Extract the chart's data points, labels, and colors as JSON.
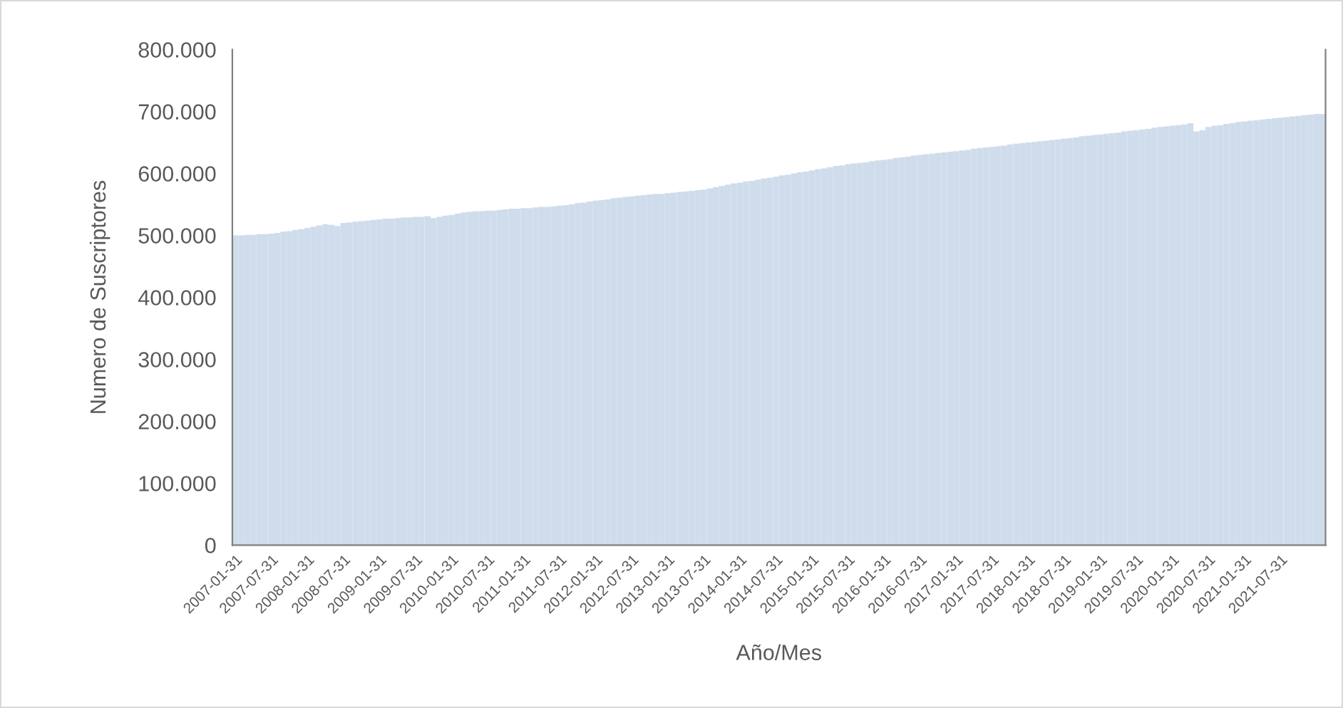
{
  "chart_data": {
    "type": "bar",
    "xlabel": "Año/Mes",
    "ylabel": "Numero de Suscriptores",
    "color": "#cfdcec",
    "categories": [
      "2007-01-31",
      null,
      null,
      null,
      null,
      null,
      "2007-07-31",
      null,
      null,
      null,
      null,
      null,
      "2008-01-31",
      null,
      null,
      null,
      null,
      null,
      "2008-07-31",
      null,
      null,
      null,
      null,
      null,
      "2009-01-31",
      null,
      null,
      null,
      null,
      null,
      "2009-07-31",
      null,
      null,
      null,
      null,
      null,
      "2010-01-31",
      null,
      null,
      null,
      null,
      null,
      "2010-07-31",
      null,
      null,
      null,
      null,
      null,
      "2011-01-31",
      null,
      null,
      null,
      null,
      null,
      "2011-07-31",
      null,
      null,
      null,
      null,
      null,
      "2012-01-31",
      null,
      null,
      null,
      null,
      null,
      "2012-07-31",
      null,
      null,
      null,
      null,
      null,
      "2013-01-31",
      null,
      null,
      null,
      null,
      null,
      "2013-07-31",
      null,
      null,
      null,
      null,
      null,
      "2014-01-31",
      null,
      null,
      null,
      null,
      null,
      "2014-07-31",
      null,
      null,
      null,
      null,
      null,
      "2015-01-31",
      null,
      null,
      null,
      null,
      null,
      "2015-07-31",
      null,
      null,
      null,
      null,
      null,
      "2016-01-31",
      null,
      null,
      null,
      null,
      null,
      "2016-07-31",
      null,
      null,
      null,
      null,
      null,
      "2017-01-31",
      null,
      null,
      null,
      null,
      null,
      "2017-07-31",
      null,
      null,
      null,
      null,
      null,
      "2018-01-31",
      null,
      null,
      null,
      null,
      null,
      "2018-07-31",
      null,
      null,
      null,
      null,
      null,
      "2019-01-31",
      null,
      null,
      null,
      null,
      null,
      "2019-07-31",
      null,
      null,
      null,
      null,
      null,
      "2020-01-31",
      null,
      null,
      null,
      null,
      null,
      "2020-07-31",
      null,
      null,
      null,
      null,
      null,
      "2021-01-31",
      null,
      null,
      null,
      null,
      null,
      "2021-07-31",
      null,
      null,
      null,
      null,
      null,
      null,
      null
    ],
    "values": [
      500000,
      500000,
      501000,
      501000,
      502000,
      502000,
      503000,
      504000,
      506000,
      507000,
      509000,
      510000,
      512000,
      514000,
      516000,
      518000,
      517000,
      515000,
      520000,
      521000,
      522000,
      523000,
      524000,
      525000,
      526000,
      527000,
      527000,
      528000,
      529000,
      529000,
      530000,
      530000,
      531000,
      528000,
      530000,
      532000,
      533000,
      535000,
      537000,
      538000,
      539000,
      539000,
      540000,
      540000,
      541000,
      542000,
      543000,
      543000,
      544000,
      544000,
      545000,
      546000,
      546000,
      547000,
      548000,
      549000,
      550000,
      552000,
      553000,
      555000,
      556000,
      557000,
      558000,
      560000,
      561000,
      562000,
      563000,
      564000,
      565000,
      566000,
      567000,
      567000,
      568000,
      569000,
      570000,
      571000,
      572000,
      573000,
      574000,
      576000,
      578000,
      580000,
      582000,
      584000,
      585000,
      587000,
      588000,
      590000,
      592000,
      593000,
      595000,
      597000,
      598000,
      600000,
      602000,
      603000,
      605000,
      607000,
      608000,
      610000,
      612000,
      613000,
      615000,
      616000,
      617000,
      618000,
      620000,
      621000,
      622000,
      623000,
      625000,
      626000,
      627000,
      629000,
      630000,
      631000,
      632000,
      633000,
      634000,
      635000,
      636000,
      637000,
      638000,
      640000,
      641000,
      642000,
      643000,
      644000,
      645000,
      647000,
      648000,
      649000,
      650000,
      651000,
      652000,
      653000,
      654000,
      655000,
      656000,
      657000,
      658000,
      660000,
      661000,
      662000,
      663000,
      664000,
      665000,
      666000,
      668000,
      669000,
      670000,
      671000,
      672000,
      674000,
      675000,
      676000,
      677000,
      678000,
      679000,
      681000,
      668000,
      670000,
      675000,
      677000,
      678000,
      680000,
      681000,
      683000,
      684000,
      685000,
      686000,
      687000,
      688000,
      689000,
      690000,
      691000,
      692000,
      693000,
      694000,
      695000,
      696000,
      696000
    ],
    "ylim": [
      0,
      800000
    ],
    "yticks": [
      0,
      {
        "value": 100000,
        "label": "100.000"
      },
      {
        "value": 200000,
        "label": "200.000"
      },
      {
        "value": 300000,
        "label": "300.000"
      },
      {
        "value": 400000,
        "label": "400.000"
      },
      {
        "value": 500000,
        "label": "500.000"
      },
      {
        "value": 600000,
        "label": "600.000"
      },
      {
        "value": 700000,
        "label": "700.000"
      },
      {
        "value": 800000,
        "label": "800.000"
      }
    ]
  }
}
